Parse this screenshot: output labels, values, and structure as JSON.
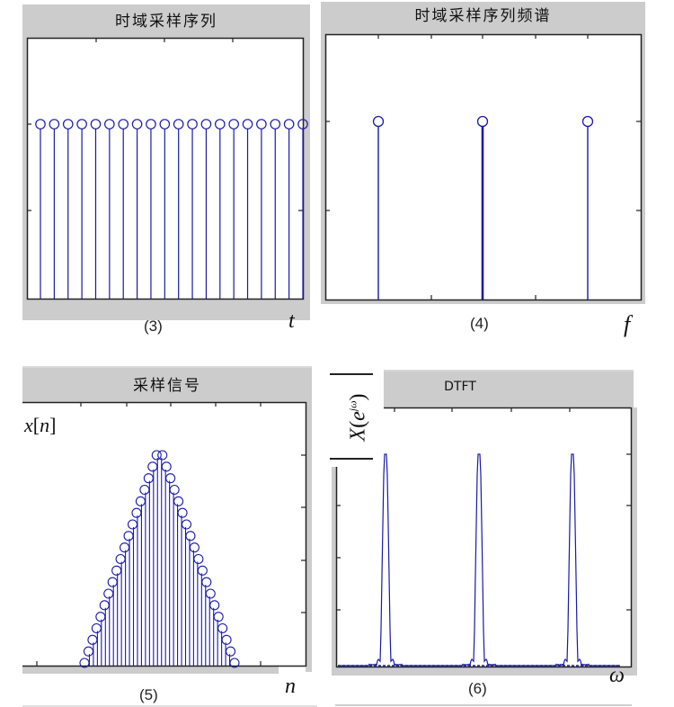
{
  "figures": [
    {
      "id": "3",
      "title": "时域采样序列",
      "caption": "(3)",
      "axis_symbol": "t"
    },
    {
      "id": "4",
      "title": "时域采样序列频谱",
      "caption": "(4)",
      "axis_symbol": "f"
    },
    {
      "id": "5",
      "title": "采样信号",
      "caption": "(5)",
      "axis_symbol": "n",
      "y_label": "x[n]"
    },
    {
      "id": "6",
      "title": "DTFT",
      "caption": "(6)",
      "axis_symbol": "ω",
      "y_label": "|X(e^{jω})|"
    }
  ],
  "colors": {
    "stem": "#1a1aa8",
    "panel_gray": "#cccccc",
    "axis": "#222222"
  },
  "chart_data": [
    {
      "type": "stem",
      "title": "时域采样序列",
      "xlabel": "t",
      "caption": "(3)",
      "n_samples": 20,
      "values": [
        1,
        1,
        1,
        1,
        1,
        1,
        1,
        1,
        1,
        1,
        1,
        1,
        1,
        1,
        1,
        1,
        1,
        1,
        1,
        1
      ],
      "note": "uniform impulse train of equal amplitude"
    },
    {
      "type": "stem",
      "title": "时域采样序列频谱",
      "xlabel": "f",
      "caption": "(4)",
      "x": [
        -1,
        0,
        1
      ],
      "values": [
        1,
        1,
        1
      ],
      "note": "periodic impulse spectrum, three impulses of equal height"
    },
    {
      "type": "stem",
      "title": "采样信号",
      "xlabel": "n",
      "ylabel": "x[n]",
      "caption": "(5)",
      "shape": "triangle",
      "n_samples": 38,
      "values": [
        0,
        1,
        2,
        3,
        4,
        5,
        6,
        7,
        8,
        9,
        10,
        11,
        12,
        13,
        14,
        15,
        16,
        17,
        18,
        18,
        17,
        16,
        15,
        14,
        13,
        12,
        11,
        10,
        9,
        8,
        7,
        6,
        5,
        4,
        3,
        2,
        1,
        0
      ]
    },
    {
      "type": "line",
      "title": "DTFT",
      "xlabel": "ω",
      "ylabel": "|X(e^{jω})|",
      "caption": "(6)",
      "peaks_at": [
        -6.28,
        0,
        6.28
      ],
      "note": "periodic narrow peaks of equal magnitude with small sidelobes"
    }
  ]
}
